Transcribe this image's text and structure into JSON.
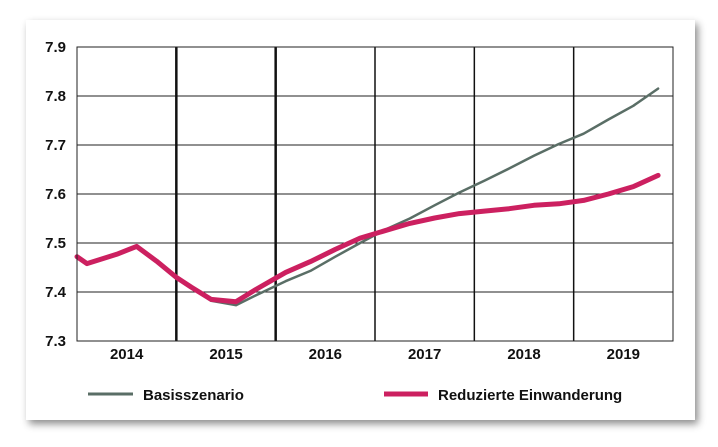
{
  "chart_data": {
    "type": "line",
    "xlim": [
      2013.5,
      2019.5
    ],
    "ylim": [
      7.3,
      7.9
    ],
    "y_ticks": [
      7.3,
      7.4,
      7.5,
      7.6,
      7.7,
      7.8,
      7.9
    ],
    "y_tick_labels": [
      "7.3",
      "7.4",
      "7.5",
      "7.6",
      "7.7",
      "7.8",
      "7.9"
    ],
    "year_labels": [
      "2014",
      "2015",
      "2016",
      "2017",
      "2018",
      "2019"
    ],
    "year_centers": [
      2014,
      2015,
      2016,
      2017,
      2018,
      2019
    ],
    "year_separators": [
      2014.5,
      2015.5,
      2016.5,
      2017.5,
      2018.5
    ],
    "grid": true,
    "legend_position": "bottom",
    "series": [
      {
        "name": "Basisszenario",
        "color": "#5a6e66",
        "x": [
          2013.5,
          2013.6,
          2013.9,
          2014.1,
          2014.3,
          2014.5,
          2014.65,
          2014.85,
          2015.1,
          2015.3,
          2015.6,
          2015.85,
          2016.1,
          2016.35,
          2016.6,
          2016.85,
          2017.1,
          2017.35,
          2017.6,
          2017.85,
          2018.1,
          2018.35,
          2018.6,
          2018.85,
          2019.1,
          2019.35
        ],
        "values": [
          7.472,
          7.458,
          7.477,
          7.493,
          7.463,
          7.43,
          7.41,
          7.382,
          7.373,
          7.393,
          7.422,
          7.443,
          7.472,
          7.5,
          7.527,
          7.55,
          7.577,
          7.603,
          7.627,
          7.652,
          7.678,
          7.702,
          7.723,
          7.752,
          7.78,
          7.815
        ]
      },
      {
        "name": "Reduzierte Einwanderung",
        "color": "#cc2060",
        "x": [
          2013.5,
          2013.6,
          2013.9,
          2014.1,
          2014.3,
          2014.5,
          2014.65,
          2014.85,
          2015.1,
          2015.3,
          2015.6,
          2015.85,
          2016.1,
          2016.35,
          2016.6,
          2016.85,
          2017.1,
          2017.35,
          2017.6,
          2017.85,
          2018.1,
          2018.35,
          2018.6,
          2018.85,
          2019.1,
          2019.35
        ],
        "values": [
          7.472,
          7.458,
          7.477,
          7.493,
          7.463,
          7.43,
          7.41,
          7.385,
          7.38,
          7.405,
          7.44,
          7.462,
          7.487,
          7.51,
          7.525,
          7.54,
          7.551,
          7.56,
          7.565,
          7.57,
          7.577,
          7.58,
          7.587,
          7.6,
          7.615,
          7.638
        ]
      }
    ]
  }
}
